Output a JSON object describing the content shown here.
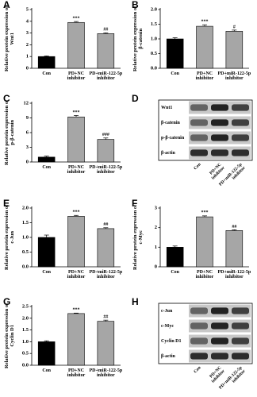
{
  "chart_data": [
    {
      "type": "bar",
      "panel": "A",
      "y_label": "Relative protein expression of Wnt1",
      "categories": [
        "Con",
        "PD+NC\ninhibitor",
        "PD+miR-122-5p\ninhibitor"
      ],
      "values": [
        1.0,
        3.9,
        2.95
      ],
      "errors": [
        0.05,
        0.08,
        0.07
      ],
      "annotations": [
        null,
        "***",
        "##"
      ],
      "colors": [
        "#000000",
        "#a6a6a6",
        "#a6a6a6"
      ],
      "ylim": [
        0,
        5
      ],
      "yticks": [
        0,
        1,
        2,
        3,
        4,
        5
      ]
    },
    {
      "type": "bar",
      "panel": "B",
      "y_label": "Relative protein expression of β-catenin",
      "categories": [
        "Con",
        "PD+NC\ninhibitor",
        "PD+miR-122-5p\ninhibitor"
      ],
      "values": [
        1.0,
        1.43,
        1.26
      ],
      "errors": [
        0.04,
        0.05,
        0.04
      ],
      "annotations": [
        null,
        "***",
        "#"
      ],
      "colors": [
        "#000000",
        "#a6a6a6",
        "#a6a6a6"
      ],
      "ylim": [
        0,
        2
      ],
      "yticks": [
        {
          "value": 0,
          "label": "0.0"
        },
        {
          "value": 0.5,
          "label": "0.5"
        },
        {
          "value": 1,
          "label": "1.0"
        },
        {
          "value": 1.5,
          "label": "1.5"
        },
        {
          "value": 2,
          "label": "2.0"
        }
      ]
    },
    {
      "type": "bar",
      "panel": "C",
      "y_label": "Relative protein expression of p-β-catenin",
      "categories": [
        "Con",
        "PD+NC\ninhibitor",
        "PD+miR-122-5p\ninhibitor"
      ],
      "values": [
        1.0,
        9.2,
        4.6
      ],
      "errors": [
        0.2,
        0.3,
        0.3
      ],
      "annotations": [
        null,
        "***",
        "###"
      ],
      "colors": [
        "#000000",
        "#a6a6a6",
        "#a6a6a6"
      ],
      "ylim": [
        0,
        12
      ],
      "yticks": [
        0,
        3,
        6,
        9,
        12
      ]
    },
    {
      "type": "blot",
      "panel": "D",
      "rows": [
        "Wnt1",
        "β-catenin",
        "p-β-catenin",
        "β-actin"
      ],
      "lanes": [
        "Con",
        "PD+NC\ninhibitor",
        "PD+miR-122-5p\ninhibitor"
      ]
    },
    {
      "type": "bar",
      "panel": "E",
      "y_label": "Relative protein expression of c-Jun",
      "categories": [
        "Con",
        "PD+NC\ninhibitor",
        "PD+miR-122-5p\ninhibitor"
      ],
      "values": [
        1.0,
        1.72,
        1.3
      ],
      "errors": [
        0.08,
        0.03,
        0.03
      ],
      "annotations": [
        null,
        "***",
        "##"
      ],
      "colors": [
        "#000000",
        "#a6a6a6",
        "#a6a6a6"
      ],
      "ylim": [
        0,
        2
      ],
      "yticks": [
        {
          "value": 0,
          "label": "0.0"
        },
        {
          "value": 0.5,
          "label": "0.5"
        },
        {
          "value": 1,
          "label": "1.0"
        },
        {
          "value": 1.5,
          "label": "1.5"
        },
        {
          "value": 2,
          "label": "2.0"
        }
      ]
    },
    {
      "type": "bar",
      "panel": "F",
      "y_label": "Relative protein expression of c-Myc",
      "categories": [
        "Con",
        "PD+NC\ninhibitor",
        "PD+miR-122-5p\ninhibitor"
      ],
      "values": [
        1.0,
        2.55,
        1.85
      ],
      "errors": [
        0.06,
        0.05,
        0.04
      ],
      "annotations": [
        null,
        "***",
        "##"
      ],
      "colors": [
        "#000000",
        "#a6a6a6",
        "#a6a6a6"
      ],
      "ylim": [
        0,
        3
      ],
      "yticks": [
        0,
        1,
        2,
        3
      ]
    },
    {
      "type": "bar",
      "panel": "G",
      "y_label": "Relative protein expression of Cyclin D1",
      "categories": [
        "Con",
        "PD+NC\ninhibitor",
        "PD+miR-122-5p\ninhibitor"
      ],
      "values": [
        1.0,
        2.2,
        1.87
      ],
      "errors": [
        0.04,
        0.02,
        0.05
      ],
      "annotations": [
        null,
        "***",
        "##"
      ],
      "colors": [
        "#000000",
        "#a6a6a6",
        "#a6a6a6"
      ],
      "ylim": [
        0,
        2.5
      ],
      "yticks": [
        {
          "value": 0,
          "label": "0.0"
        },
        {
          "value": 0.5,
          "label": "0.5"
        },
        {
          "value": 1,
          "label": "1.0"
        },
        {
          "value": 1.5,
          "label": "1.5"
        },
        {
          "value": 2,
          "label": "2.0"
        },
        {
          "value": 2.5,
          "label": "2.5"
        }
      ]
    },
    {
      "type": "blot",
      "panel": "H",
      "rows": [
        "c-Jun",
        "c-Myc",
        "Cyclin D1",
        "β-actin"
      ],
      "lanes": [
        "Con",
        "PD+NC\ninhibitor",
        "PD+miR-122-5p\ninhibitor"
      ]
    }
  ]
}
